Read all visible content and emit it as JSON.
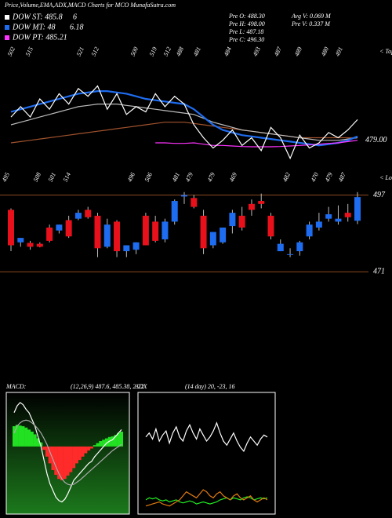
{
  "header": {
    "title": "Price,Volume,EMA,ADX,MACD Charts for MCO MunafaSutra.com",
    "legend": [
      [
        "DOW ST: 485.8",
        "6"
      ],
      [
        "DOW MT: 48",
        "6.18"
      ],
      [
        "DOW PT: 485.21"
      ]
    ],
    "info": [
      [
        "Pre O: 488.30",
        "Avg V: 0.069 M"
      ],
      [
        "Pre H: 498.00",
        "Pre V: 0.337 M"
      ],
      [
        "Pre L: 487.18",
        "Pre C: 496.30"
      ]
    ]
  },
  "chart_data": [
    {
      "type": "line",
      "ylim": [
        468,
        512
      ],
      "yticks": [
        {
          "value": 479,
          "label": "479.00"
        }
      ],
      "grid": false,
      "tops": {
        "label": "< Tops",
        "values": [
          502,
          515,
          521,
          512,
          500,
          519,
          512,
          488,
          481,
          484,
          493,
          487,
          489,
          480,
          491
        ]
      },
      "lows": {
        "label": "< Lows",
        "values": [
          495,
          508,
          501,
          514,
          496,
          506,
          481,
          479,
          479,
          469,
          482,
          470,
          479,
          487
        ]
      },
      "series": [
        {
          "color": "#a0522d",
          "values": [
            478,
            478.5,
            479,
            479.5,
            480,
            480.5,
            481,
            481.5,
            482,
            482.5,
            483,
            483.5,
            484,
            484.5,
            485,
            485.5,
            486,
            486,
            486,
            485.5,
            485,
            484.5,
            484,
            483.5,
            483,
            482.5,
            482,
            481.5,
            481,
            480.5,
            480,
            480,
            480,
            480,
            480,
            480,
            480
          ]
        },
        {
          "color": "#bbbbbb",
          "values": [
            485,
            486,
            487,
            488,
            489,
            490,
            491,
            492,
            492.5,
            493,
            493,
            493,
            492.5,
            492,
            491.5,
            491,
            490.5,
            490,
            489.5,
            489,
            487.5,
            486,
            485,
            484,
            483,
            482.5,
            482,
            481.5,
            481,
            480.5,
            480,
            479.5,
            479,
            479,
            479,
            479.5,
            480
          ]
        },
        {
          "color": "#1e6cf0",
          "values": [
            490,
            491,
            492,
            493,
            494,
            495,
            496,
            497,
            497.5,
            498,
            498,
            497.5,
            497,
            496,
            495,
            494.5,
            494,
            493.5,
            493,
            491,
            488,
            485,
            483,
            482,
            481,
            480.5,
            480,
            479.5,
            479,
            478.5,
            478,
            477.5,
            477,
            477.5,
            478,
            479,
            480.5
          ]
        },
        {
          "color": "#ff33ff",
          "values": [
            null,
            null,
            null,
            null,
            null,
            null,
            null,
            null,
            null,
            null,
            null,
            null,
            null,
            null,
            null,
            478,
            478,
            477.8,
            477.8,
            478,
            477.5,
            477,
            477,
            476.8,
            476.6,
            476.5,
            476.5,
            476.5,
            476.6,
            476.8,
            477,
            477.2,
            477.5,
            477.8,
            478,
            478.5,
            479
          ]
        },
        {
          "color": "#ffffff",
          "values": [
            488,
            492,
            488,
            495,
            491,
            497,
            493,
            499,
            496,
            500,
            491,
            497,
            489,
            492,
            490,
            497,
            492,
            496,
            493,
            485,
            480,
            476,
            479,
            483,
            477,
            480,
            475,
            484,
            480,
            472,
            481,
            476,
            478,
            482,
            480,
            483,
            487
          ]
        }
      ]
    },
    {
      "type": "candlestick",
      "ylim": [
        465,
        499
      ],
      "yticks": [
        471,
        497
      ],
      "grid": true,
      "grid_color": "#8b4a1f",
      "up_color": "#1e6cf0",
      "down_color": "#e8101a",
      "open": [
        492,
        481,
        480.8,
        480.5,
        486,
        485,
        488.5,
        489,
        492,
        490,
        479.5,
        488,
        478,
        478.5,
        490,
        488,
        482,
        488,
        496.5,
        496,
        490,
        480,
        481,
        486.5,
        490,
        494,
        495,
        490,
        478,
        477,
        478,
        483,
        486,
        489,
        488,
        491,
        488.3
      ],
      "high": [
        492.5,
        482.5,
        481.5,
        481,
        487,
        487,
        490,
        492,
        493,
        491,
        489,
        488.5,
        480,
        481,
        491,
        490,
        489,
        495.5,
        498,
        497,
        492,
        484.5,
        486,
        492,
        493,
        495.5,
        497.5,
        491,
        482,
        479,
        481.5,
        488,
        491,
        493,
        493.5,
        494,
        498
      ],
      "low": [
        478,
        479.5,
        478.5,
        479.3,
        481,
        484,
        482.5,
        488.5,
        489,
        476,
        479,
        476,
        476,
        477,
        480,
        481,
        481,
        487,
        494,
        492.5,
        477,
        479,
        480.5,
        484,
        485,
        490,
        492.5,
        482,
        478,
        476,
        476.5,
        482,
        485,
        488,
        487,
        488,
        487.18
      ],
      "close": [
        480,
        482.5,
        479.5,
        479.5,
        481.5,
        487,
        483,
        491,
        489.5,
        479,
        487,
        478,
        480,
        481,
        480,
        481.5,
        488,
        495,
        497,
        493,
        479,
        484.5,
        486,
        491,
        486,
        492,
        494,
        483,
        480.5,
        477,
        481,
        487,
        488,
        490.5,
        489,
        489.5,
        496.3
      ]
    },
    {
      "type": "macd",
      "title": "MACD:",
      "subtitle": "(12,26,9) 487.6, 485.38, 2.22",
      "ylim": [
        -10,
        8
      ],
      "up_color": "#22e022",
      "down_color": "#ff2a2a",
      "histogram": [
        3,
        3.2,
        3.1,
        3,
        2.8,
        2.5,
        2.2,
        1.8,
        1.2,
        0.6,
        -0.5,
        -1.5,
        -2.5,
        -3.5,
        -4.2,
        -4.8,
        -5,
        -4.8,
        -4.3,
        -3.8,
        -3.2,
        -2.5,
        -2,
        -1.5,
        -1,
        -0.6,
        -0.3,
        0.2,
        0.5,
        0.8,
        1,
        1.2,
        1.4,
        1.5,
        1.7,
        2,
        2.2
      ],
      "series": [
        {
          "color": "#ffffff",
          "values": [
            5,
            6,
            6.5,
            6.2,
            5.5,
            5,
            4,
            3,
            1.5,
            0,
            -2,
            -4,
            -5.5,
            -6.5,
            -7.5,
            -8,
            -8.2,
            -7.8,
            -7,
            -6,
            -5,
            -4.5,
            -4,
            -3.5,
            -3,
            -2.5,
            -2.2,
            -1.5,
            -1,
            -0.5,
            0,
            0.5,
            0.8,
            1,
            1.5,
            2,
            2.5
          ]
        },
        {
          "color": "#aaaaaa",
          "values": [
            2,
            3,
            3.5,
            3.8,
            3.9,
            3.8,
            3.5,
            3.1,
            2.6,
            2,
            1.2,
            0.3,
            -0.8,
            -1.9,
            -3,
            -4,
            -4.8,
            -5.3,
            -5.6,
            -5.7,
            -5.6,
            -5.3,
            -5,
            -4.6,
            -4.2,
            -3.8,
            -3.4,
            -3,
            -2.6,
            -2.2,
            -1.8,
            -1.4,
            -1,
            -0.6,
            -0.3,
            0,
            0.3
          ]
        }
      ]
    },
    {
      "type": "line",
      "title": "ADX",
      "subtitle": "(14 day) 20, -23, 16",
      "ylim": [
        0,
        60
      ],
      "grid": false,
      "series": [
        {
          "color": "#ffffff",
          "values": [
            38,
            40,
            37,
            42,
            36,
            39,
            41,
            35,
            40,
            43,
            38,
            36,
            41,
            44,
            40,
            37,
            42,
            39,
            36,
            38,
            41,
            45,
            40,
            36,
            34,
            37,
            40,
            36,
            33,
            31,
            35,
            38,
            36,
            34,
            37,
            39,
            38
          ]
        },
        {
          "color": "#22ee22",
          "values": [
            7,
            8,
            7.5,
            8,
            7,
            6.5,
            7,
            6,
            6.5,
            7,
            6,
            5.5,
            6,
            6.5,
            6,
            5,
            5.5,
            6,
            5.5,
            5,
            5.5,
            6,
            7,
            7.5,
            8,
            7,
            8,
            7.5,
            7,
            8,
            8.5,
            8,
            7,
            7.5,
            8,
            7.5,
            8
          ]
        },
        {
          "color": "#e07a10",
          "values": [
            4,
            4.5,
            5,
            5.5,
            6,
            5,
            4.5,
            4,
            5,
            6,
            7,
            9,
            11,
            10,
            9,
            8,
            10,
            12,
            11,
            9,
            8,
            10,
            11,
            9,
            8,
            7,
            9,
            10,
            8,
            7,
            8,
            9,
            7,
            6,
            7,
            8,
            7
          ]
        }
      ]
    }
  ]
}
